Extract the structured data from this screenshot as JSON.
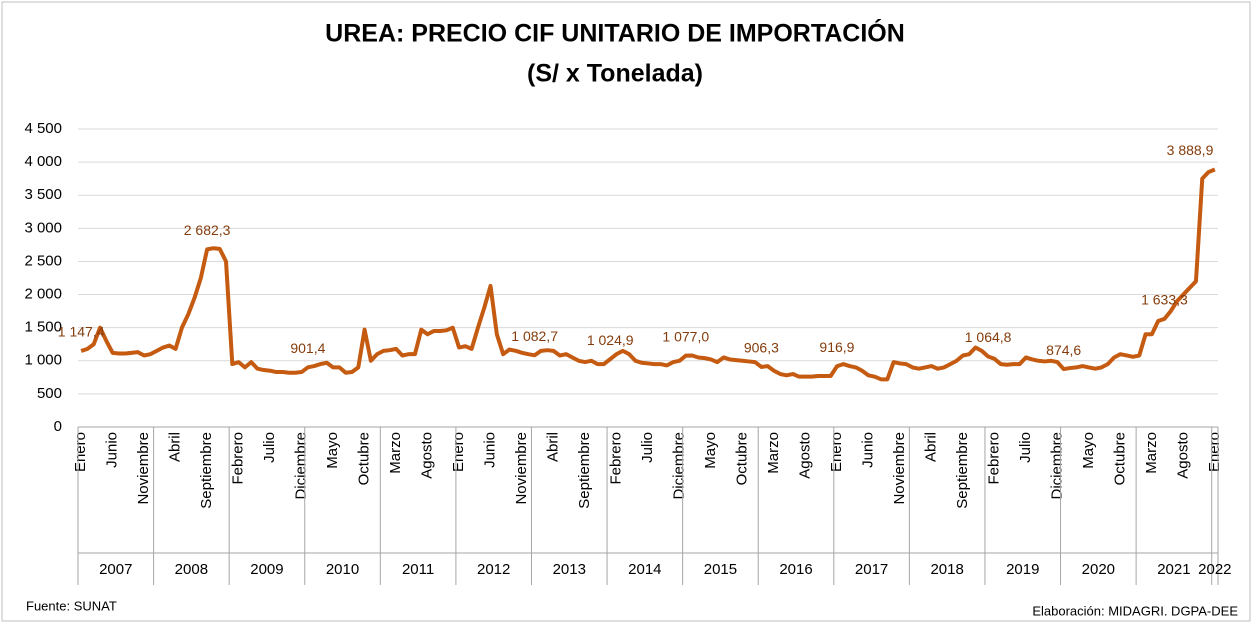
{
  "chart_data": {
    "type": "line",
    "title": "UREA: PRECIO CIF UNITARIO DE IMPORTACIÓN",
    "subtitle": "(S/ x Tonelada)",
    "source": "Fuente: SUNAT",
    "credit": "Elaboración: MIDAGRI. DGPA-DEE",
    "color": "#c55a11",
    "grid": true,
    "ylim": [
      0,
      4500
    ],
    "yticks": [
      0,
      500,
      {
        "value": 1000,
        "label": "1 000"
      },
      {
        "value": 1500,
        "label": "1 500"
      },
      {
        "value": 2000,
        "label": "2 000"
      },
      {
        "value": 2500,
        "label": "2 500"
      },
      {
        "value": 3000,
        "label": "3 000"
      },
      {
        "value": 3500,
        "label": "3 500"
      },
      {
        "value": 4000,
        "label": "4 000"
      },
      {
        "value": 4500,
        "label": "4 500"
      }
    ],
    "years": [
      "2007",
      "2008",
      "2009",
      "2010",
      "2011",
      "2012",
      "2013",
      "2014",
      "2015",
      "2016",
      "2017",
      "2018",
      "2019",
      "2020",
      "2021",
      "2022"
    ],
    "categories": [
      "Enero",
      null,
      null,
      null,
      null,
      "Junio",
      null,
      null,
      null,
      null,
      "Noviembre",
      null,
      null,
      null,
      null,
      "Abril",
      null,
      null,
      null,
      null,
      "Septiembre",
      null,
      null,
      null,
      null,
      "Febrero",
      null,
      null,
      null,
      null,
      "Julio",
      null,
      null,
      null,
      null,
      "Diciembre",
      null,
      null,
      null,
      null,
      "Mayo",
      null,
      null,
      null,
      null,
      "Octubre",
      null,
      null,
      null,
      null,
      "Marzo",
      null,
      null,
      null,
      null,
      "Agosto",
      null,
      null,
      null,
      null,
      "Enero",
      null,
      null,
      null,
      null,
      "Junio",
      null,
      null,
      null,
      null,
      "Noviembre",
      null,
      null,
      null,
      null,
      "Abril",
      null,
      null,
      null,
      null,
      "Septiembre",
      null,
      null,
      null,
      null,
      "Febrero",
      null,
      null,
      null,
      null,
      "Julio",
      null,
      null,
      null,
      null,
      "Diciembre",
      null,
      null,
      null,
      null,
      "Mayo",
      null,
      null,
      null,
      null,
      "Octubre",
      null,
      null,
      null,
      null,
      "Marzo",
      null,
      null,
      null,
      null,
      "Agosto",
      null,
      null,
      null,
      null,
      "Enero",
      null,
      null,
      null,
      null,
      "Junio",
      null,
      null,
      null,
      null,
      "Noviembre",
      null,
      null,
      null,
      null,
      "Abril",
      null,
      null,
      null,
      null,
      "Septiembre",
      null,
      null,
      null,
      null,
      "Febrero",
      null,
      null,
      null,
      null,
      "Julio",
      null,
      null,
      null,
      null,
      "Diciembre",
      null,
      null,
      null,
      null,
      "Mayo",
      null,
      null,
      null,
      null,
      "Octubre",
      null,
      null,
      null,
      null,
      "Marzo",
      null,
      null,
      null,
      null,
      "Agosto",
      null,
      null,
      null,
      null,
      "Enero"
    ],
    "values": [
      1147.4,
      1180,
      1250,
      1500,
      1300,
      1120,
      1110,
      1110,
      1120,
      1130,
      1080,
      1100,
      1150,
      1200,
      1230,
      1180,
      1500,
      1700,
      1950,
      2250,
      2682.3,
      2700,
      2690,
      2500,
      950,
      980,
      900,
      980,
      880,
      860,
      850,
      830,
      830,
      820,
      820,
      830,
      901.4,
      920,
      950,
      970,
      900,
      900,
      820,
      830,
      900,
      1470,
      1000,
      1100,
      1150,
      1160,
      1180,
      1080,
      1100,
      1100,
      1470,
      1400,
      1450,
      1450,
      1460,
      1500,
      1200,
      1220,
      1180,
      1500,
      1800,
      2130,
      1400,
      1100,
      1170,
      1150,
      1120,
      1100,
      1082.7,
      1150,
      1160,
      1150,
      1080,
      1100,
      1050,
      1000,
      980,
      1000,
      950,
      950,
      1024.9,
      1100,
      1150,
      1100,
      1000,
      970,
      960,
      950,
      950,
      930,
      980,
      1000,
      1077.0,
      1080,
      1050,
      1040,
      1020,
      980,
      1050,
      1020,
      1010,
      1000,
      990,
      980,
      906.3,
      920,
      850,
      800,
      780,
      800,
      760,
      760,
      760,
      770,
      770,
      770,
      916.9,
      950,
      920,
      900,
      850,
      780,
      760,
      720,
      720,
      980,
      960,
      950,
      900,
      880,
      900,
      920,
      880,
      900,
      950,
      1000,
      1080,
      1100,
      1200,
      1150,
      1064.8,
      1030,
      950,
      940,
      950,
      950,
      1050,
      1020,
      1000,
      990,
      1000,
      980,
      874.6,
      890,
      900,
      920,
      900,
      880,
      900,
      950,
      1050,
      1100,
      1080,
      1060,
      1080,
      1400,
      1400,
      1600,
      1633.3,
      1750,
      1900,
      2000,
      2100,
      2200,
      3750,
      3850,
      3888.9
    ],
    "value_labels": [
      "1 147,4",
      null,
      null,
      null,
      null,
      null,
      null,
      null,
      null,
      null,
      null,
      null,
      null,
      null,
      null,
      null,
      null,
      null,
      null,
      null,
      "2 682,3",
      null,
      null,
      null,
      null,
      null,
      null,
      null,
      null,
      null,
      null,
      null,
      null,
      null,
      null,
      null,
      "901,4",
      null,
      null,
      null,
      null,
      null,
      null,
      null,
      null,
      null,
      null,
      null,
      null,
      null,
      null,
      null,
      null,
      null,
      null,
      null,
      null,
      null,
      null,
      null,
      null,
      null,
      null,
      null,
      null,
      null,
      null,
      null,
      null,
      null,
      null,
      null,
      "1 082,7",
      null,
      null,
      null,
      null,
      null,
      null,
      null,
      null,
      null,
      null,
      null,
      "1 024,9",
      null,
      null,
      null,
      null,
      null,
      null,
      null,
      null,
      null,
      null,
      null,
      "1 077,0",
      null,
      null,
      null,
      null,
      null,
      null,
      null,
      null,
      null,
      null,
      null,
      "906,3",
      null,
      null,
      null,
      null,
      null,
      null,
      null,
      null,
      null,
      null,
      null,
      "916,9",
      null,
      null,
      null,
      null,
      null,
      null,
      null,
      null,
      null,
      null,
      null,
      null,
      null,
      null,
      null,
      null,
      null,
      null,
      null,
      null,
      null,
      null,
      null,
      "1 064,8",
      null,
      null,
      null,
      null,
      null,
      null,
      null,
      null,
      null,
      null,
      null,
      "874,6",
      null,
      null,
      null,
      null,
      null,
      null,
      null,
      null,
      null,
      null,
      null,
      null,
      null,
      null,
      null,
      "1 633,3",
      null,
      null,
      null,
      null,
      null,
      null,
      null,
      "3 888,9"
    ]
  }
}
